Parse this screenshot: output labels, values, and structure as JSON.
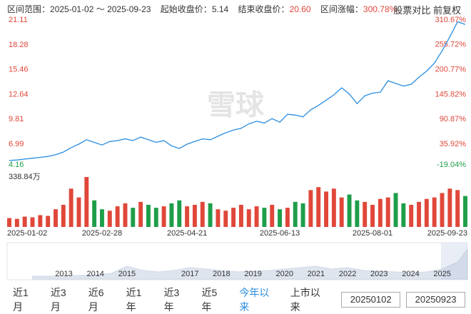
{
  "header": {
    "range_label": "区间范围：",
    "range": "2025-01-02 ～ 2025-09-23",
    "start_label": "起始收盘价：",
    "start": "5.14",
    "end_label": "结束收盘价：",
    "end": "20.60",
    "change_label": "区间涨幅：",
    "change": "300.78%",
    "compare": "股票对比",
    "adjust": "前复权"
  },
  "watermark": "雪球",
  "chart_data": [
    {
      "type": "line",
      "color": "#2a8de0",
      "up_color": "#e0473a",
      "down_color": "#1e9e4a",
      "values": [
        5.14,
        5.2,
        5.3,
        5.4,
        5.5,
        5.6,
        5.8,
        6.1,
        6.6,
        7.0,
        7.5,
        7.2,
        6.9,
        7.3,
        7.4,
        7.6,
        7.4,
        7.8,
        7.5,
        7.2,
        7.4,
        6.8,
        6.5,
        7.0,
        7.3,
        7.6,
        7.5,
        7.9,
        8.3,
        8.6,
        8.8,
        9.3,
        9.6,
        9.4,
        9.9,
        9.5,
        10.4,
        10.3,
        10.1,
        10.9,
        11.4,
        12.0,
        12.6,
        13.4,
        12.7,
        11.6,
        12.5,
        12.8,
        12.9,
        14.2,
        13.9,
        13.6,
        13.8,
        14.6,
        15.3,
        16.2,
        17.6,
        19.2,
        20.9,
        20.6
      ],
      "ylim": [
        4.16,
        21.11
      ],
      "yticks": [
        4.16,
        6.99,
        9.81,
        12.64,
        15.46,
        18.28,
        21.11
      ],
      "y2lim": [
        -19.04,
        310.67
      ],
      "y2ticks": [
        {
          "value": -19.04,
          "label": "-19.04%"
        },
        {
          "value": 35.92,
          "label": "35.92%"
        },
        {
          "value": 90.87,
          "label": "90.87%"
        },
        {
          "value": 145.82,
          "label": "145.82%"
        },
        {
          "value": 200.77,
          "label": "200.77%"
        },
        {
          "value": 255.72,
          "label": "255.72%"
        },
        {
          "value": 310.67,
          "label": "310.67%"
        }
      ]
    },
    {
      "type": "bar",
      "up_color": "#e0473a",
      "down_color": "#1e9e4a",
      "categories": [
        "2025-01-02",
        null,
        null,
        null,
        null,
        null,
        null,
        null,
        null,
        null,
        null,
        null,
        "2025-02-28",
        null,
        null,
        null,
        null,
        null,
        null,
        null,
        null,
        null,
        null,
        "2025-04-21",
        null,
        null,
        null,
        null,
        null,
        null,
        null,
        null,
        null,
        null,
        null,
        "2025-06-13",
        null,
        null,
        null,
        null,
        null,
        null,
        null,
        null,
        null,
        null,
        null,
        "2025-08-01",
        null,
        null,
        null,
        null,
        null,
        null,
        null,
        null,
        null,
        null,
        null,
        "2025-09-23"
      ],
      "values": [
        60,
        55,
        70,
        65,
        80,
        75,
        120,
        150,
        260,
        200,
        338.84,
        180,
        120,
        110,
        140,
        160,
        130,
        170,
        150,
        130,
        140,
        160,
        180,
        140,
        150,
        170,
        160,
        120,
        110,
        130,
        150,
        120,
        140,
        130,
        150,
        120,
        130,
        170,
        160,
        250,
        270,
        240,
        260,
        200,
        220,
        180,
        170,
        150,
        190,
        200,
        230,
        160,
        150,
        170,
        190,
        200,
        230,
        260,
        250,
        210
      ],
      "ylim": [
        0,
        338.84
      ],
      "yticks": [
        {
          "value": 338.84,
          "label": "338.84万"
        }
      ]
    },
    {
      "type": "area",
      "color": "#b9c7dc",
      "x": [
        2012,
        2012.5,
        2013,
        2013.5,
        2014,
        2014.5,
        2015,
        2015.5,
        2016,
        2016.5,
        2017,
        2017.5,
        2018,
        2018.5,
        2019,
        2019.5,
        2020,
        2020.5,
        2021,
        2021.5,
        2022,
        2022.5,
        2023,
        2023.5,
        2024,
        2024.5,
        2025,
        2025.5,
        2025.8
      ],
      "values": [
        2,
        2,
        2.2,
        2.5,
        3,
        4,
        9,
        6,
        5,
        6,
        8,
        7,
        6,
        5,
        5.5,
        6,
        7,
        8,
        9,
        7,
        8,
        6,
        5.5,
        5,
        4.5,
        5,
        7,
        12,
        21
      ],
      "xlim": [
        2011.2,
        2025.8
      ],
      "ylim": [
        0,
        25
      ],
      "xticks": [
        2013,
        2014,
        2015,
        2017,
        2018,
        2019,
        2020,
        2021,
        2022,
        2023,
        2024,
        2025
      ]
    }
  ],
  "controls": {
    "periods": [
      "近1月",
      "近3月",
      "近6月",
      "近1年",
      "近3年",
      "近5年",
      "今年以来",
      "上市以来"
    ],
    "from": "20250102",
    "to": "20250923"
  }
}
